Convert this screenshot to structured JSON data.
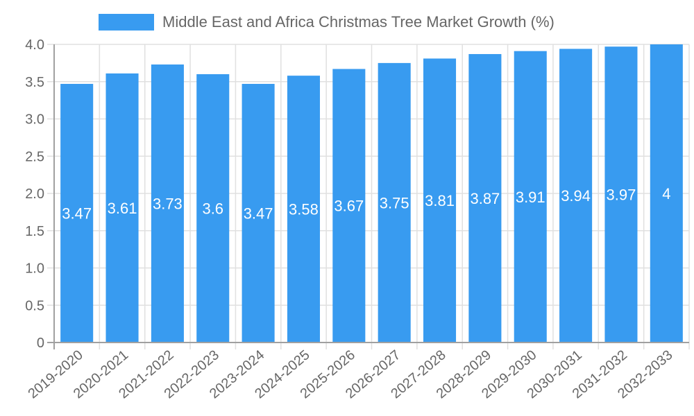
{
  "chart_data": {
    "type": "bar",
    "title": "",
    "xlabel": "",
    "ylabel": "",
    "ylim": [
      0,
      4.0
    ],
    "yticks": [
      "0",
      "0.5",
      "1.0",
      "1.5",
      "2.0",
      "2.5",
      "3.0",
      "3.5",
      "4.0"
    ],
    "grid": true,
    "legend_position": "top",
    "categories": [
      "2019-2020",
      "2020-2021",
      "2021-2022",
      "2022-2023",
      "2023-2024",
      "2024-2025",
      "2025-2026",
      "2026-2027",
      "2027-2028",
      "2028-2029",
      "2029-2030",
      "2030-2031",
      "2031-2032",
      "2032-2033"
    ],
    "series": [
      {
        "name": "Middle East and Africa Christmas Tree Market Growth (%)",
        "color": "#389bf0",
        "values": [
          3.47,
          3.61,
          3.73,
          3.6,
          3.47,
          3.58,
          3.67,
          3.75,
          3.81,
          3.87,
          3.91,
          3.94,
          3.97,
          4
        ]
      }
    ],
    "data_labels": [
      "3.47",
      "3.61",
      "3.73",
      "3.6",
      "3.47",
      "3.58",
      "3.67",
      "3.75",
      "3.81",
      "3.87",
      "3.91",
      "3.94",
      "3.97",
      "4"
    ]
  },
  "legend": {
    "label": "Middle East and Africa Christmas Tree Market Growth (%)"
  },
  "colors": {
    "bar": "#389bf0",
    "grid": "#e0e0e0",
    "axis": "#a0a0a0",
    "text": "#666666"
  }
}
